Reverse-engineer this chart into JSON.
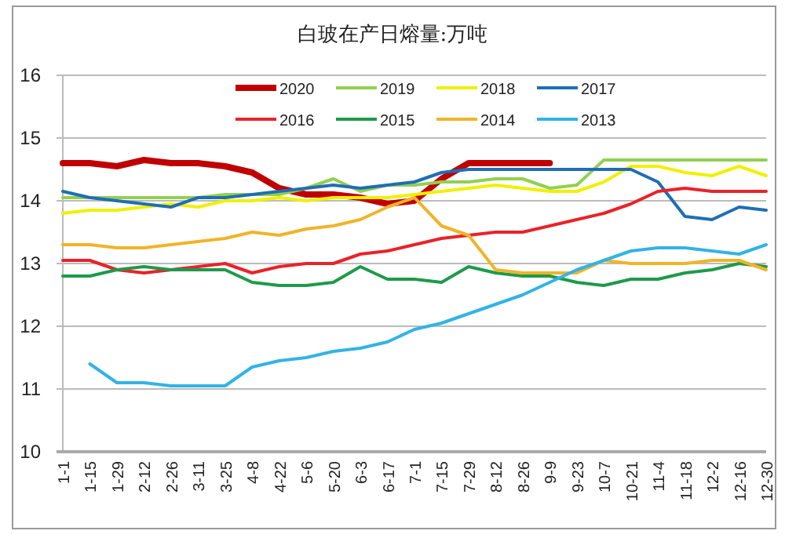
{
  "chart_data": {
    "type": "line",
    "title": "白玻在产日熔量:万吨",
    "categories": [
      "1-1",
      "1-15",
      "1-29",
      "2-12",
      "2-26",
      "3-11",
      "3-25",
      "4-8",
      "4-22",
      "5-6",
      "5-20",
      "6-3",
      "6-17",
      "7-1",
      "7-15",
      "7-29",
      "8-12",
      "8-26",
      "9-9",
      "9-23",
      "10-7",
      "10-21",
      "11-4",
      "11-18",
      "12-2",
      "12-16",
      "12-30"
    ],
    "series": [
      {
        "name": "2020",
        "color": "#c00000",
        "values": [
          14.6,
          14.6,
          14.55,
          14.65,
          14.6,
          14.6,
          14.55,
          14.45,
          14.2,
          14.1,
          14.1,
          14.05,
          13.95,
          14.0,
          14.35,
          14.6,
          14.6,
          14.6,
          14.6,
          null,
          null,
          null,
          null,
          null,
          null,
          null,
          null
        ]
      },
      {
        "name": "2019",
        "color": "#92d050",
        "values": [
          14.05,
          14.05,
          14.05,
          14.05,
          14.05,
          14.05,
          14.1,
          14.1,
          14.1,
          14.2,
          14.35,
          14.15,
          14.25,
          14.25,
          14.3,
          14.3,
          14.35,
          14.35,
          14.2,
          14.25,
          14.65,
          14.65,
          14.65,
          14.65,
          14.65,
          14.65,
          14.65
        ]
      },
      {
        "name": "2018",
        "color": "#f0f000",
        "values": [
          13.8,
          13.85,
          13.85,
          13.9,
          13.95,
          13.9,
          14.0,
          14.0,
          14.05,
          14.0,
          14.05,
          14.05,
          14.05,
          14.1,
          14.15,
          14.2,
          14.25,
          14.2,
          14.15,
          14.15,
          14.3,
          14.55,
          14.55,
          14.45,
          14.4,
          14.55,
          14.4
        ]
      },
      {
        "name": "2017",
        "color": "#1f6eb4",
        "values": [
          14.15,
          14.05,
          14.0,
          13.95,
          13.9,
          14.05,
          14.05,
          14.1,
          14.15,
          14.2,
          14.25,
          14.2,
          14.25,
          14.3,
          14.45,
          14.5,
          14.5,
          14.5,
          14.5,
          14.5,
          14.5,
          14.5,
          14.3,
          13.75,
          13.7,
          13.9,
          13.85
        ]
      },
      {
        "name": "2016",
        "color": "#e8232a",
        "values": [
          13.05,
          13.05,
          12.9,
          12.85,
          12.9,
          12.95,
          13.0,
          12.85,
          12.95,
          13.0,
          13.0,
          13.15,
          13.2,
          13.3,
          13.4,
          13.45,
          13.5,
          13.5,
          13.6,
          13.7,
          13.8,
          13.95,
          14.15,
          14.2,
          14.15,
          14.15,
          14.15
        ]
      },
      {
        "name": "2015",
        "color": "#1e9a4a",
        "values": [
          12.8,
          12.8,
          12.9,
          12.95,
          12.9,
          12.9,
          12.9,
          12.7,
          12.65,
          12.65,
          12.7,
          12.95,
          12.75,
          12.75,
          12.7,
          12.95,
          12.85,
          12.8,
          12.8,
          12.7,
          12.65,
          12.75,
          12.75,
          12.85,
          12.9,
          13.0,
          12.95
        ]
      },
      {
        "name": "2014",
        "color": "#f0b429",
        "values": [
          13.3,
          13.3,
          13.25,
          13.25,
          13.3,
          13.35,
          13.4,
          13.5,
          13.45,
          13.55,
          13.6,
          13.7,
          13.9,
          14.05,
          13.6,
          13.45,
          12.9,
          12.85,
          12.85,
          12.85,
          13.05,
          13.0,
          13.0,
          13.0,
          13.05,
          13.05,
          12.9
        ]
      },
      {
        "name": "2013",
        "color": "#33b3e6",
        "values": [
          null,
          11.4,
          11.1,
          11.1,
          11.05,
          11.05,
          11.05,
          11.35,
          11.45,
          11.5,
          11.6,
          11.65,
          11.75,
          11.95,
          12.05,
          12.2,
          12.35,
          12.5,
          12.7,
          12.9,
          13.05,
          13.2,
          13.25,
          13.25,
          13.2,
          13.15,
          13.3
        ]
      }
    ],
    "ylim": [
      10,
      16
    ],
    "yticks": [
      10,
      11,
      12,
      13,
      14,
      15,
      16
    ],
    "grid": "y",
    "legend": "top",
    "marker": "none",
    "line_style": "solid"
  }
}
